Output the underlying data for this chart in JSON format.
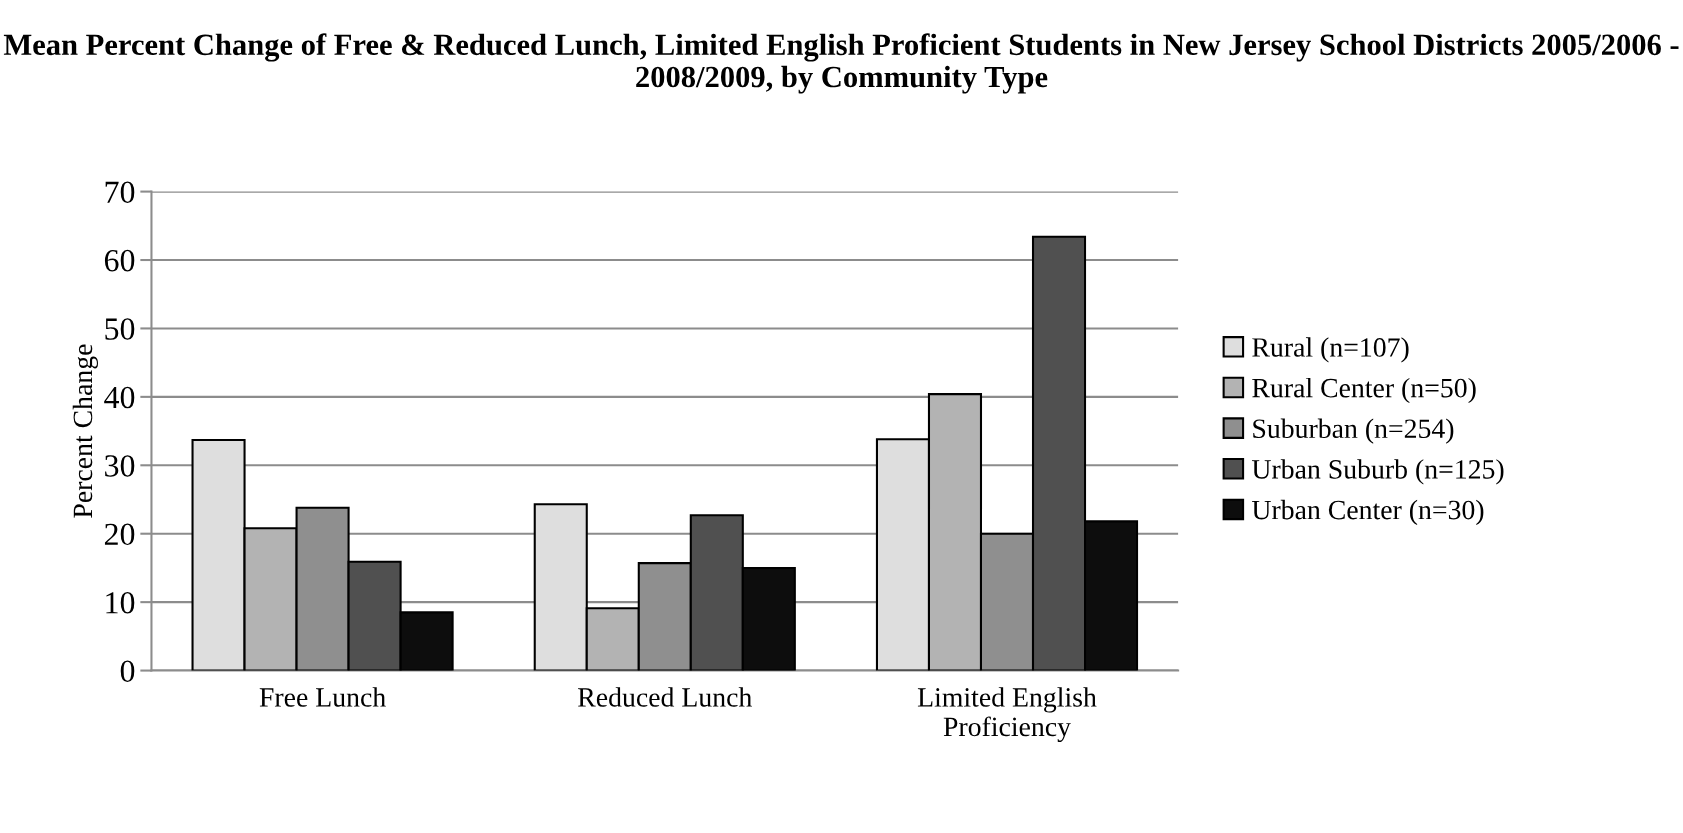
{
  "chart_data": {
    "type": "bar",
    "title": "Mean Percent Change of Free & Reduced Lunch, Limited English Proficient Students in New Jersey School Districts 2005/2006 - 2008/2009, by Community Type",
    "ylabel": "Percent Change",
    "categories": [
      "Free Lunch",
      "Reduced Lunch",
      "Limited English\nProficiency"
    ],
    "series": [
      {
        "name": "Rural (n=107)",
        "color": "#dedede",
        "values": [
          33.7,
          24.3,
          33.8
        ]
      },
      {
        "name": "Rural Center (n=50)",
        "color": "#b3b3b3",
        "values": [
          20.8,
          9.1,
          40.4
        ]
      },
      {
        "name": "Suburban (n=254)",
        "color": "#8f8f8f",
        "values": [
          23.8,
          15.7,
          20.0
        ]
      },
      {
        "name": "Urban Suburb (n=125)",
        "color": "#505050",
        "values": [
          15.9,
          22.7,
          63.4
        ]
      },
      {
        "name": "Urban Center (n=30)",
        "color": "#0d0d0d",
        "values": [
          8.5,
          15.0,
          21.8
        ]
      }
    ],
    "ylim": [
      0,
      70
    ],
    "yticks": [
      0,
      10,
      20,
      30,
      40,
      50,
      60,
      70
    ],
    "grid": "y",
    "legend": "right"
  }
}
